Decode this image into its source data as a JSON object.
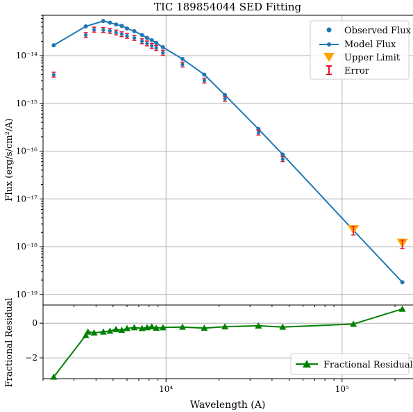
{
  "chart_data": [
    {
      "panel": "top",
      "type": "scatter",
      "title": "TIC 189854044 SED Fitting",
      "xlabel": "",
      "ylabel": "Flux (erg/s/cm²/A)",
      "xscale": "log",
      "yscale": "log",
      "xlim": [
        2000,
        260000
      ],
      "ylim": [
        6e-20,
        7e-14
      ],
      "grid": true,
      "y_ticks": [
        "10⁻¹⁴",
        "10⁻¹⁵",
        "10⁻¹⁶",
        "10⁻¹⁷",
        "10⁻¹⁸",
        "10⁻¹⁹"
      ],
      "legend_position": "top-right",
      "legend": [
        "Observed Flux",
        "Model Flux",
        "Upper Limit",
        "Error"
      ],
      "series": [
        {
          "name": "Observed Flux",
          "x": [
            2300,
            3500,
            3900,
            4400,
            4800,
            5200,
            5600,
            6000,
            6600,
            7300,
            7800,
            8300,
            8800,
            9600,
            12400,
            16500,
            21600,
            33500,
            46000
          ],
          "y": [
            4e-15,
            2.7e-14,
            3.5e-14,
            3.45e-14,
            3.3e-14,
            3.05e-14,
            2.8e-14,
            2.6e-14,
            2.35e-14,
            2e-14,
            1.8e-14,
            1.6e-14,
            1.45e-14,
            1.15e-14,
            6.5e-15,
            3e-15,
            1.25e-15,
            2.45e-16,
            6.8e-17
          ]
        },
        {
          "name": "Model Flux",
          "x": [
            2300,
            3500,
            4400,
            4800,
            5200,
            5600,
            6000,
            6600,
            7300,
            7800,
            8300,
            8800,
            9600,
            12400,
            16500,
            21600,
            33500,
            46000,
            116000,
            220000
          ],
          "y": [
            1.65e-14,
            4.1e-14,
            5.3e-14,
            4.9e-14,
            4.5e-14,
            4.2e-14,
            3.7e-14,
            3.25e-14,
            2.7e-14,
            2.35e-14,
            2.1e-14,
            1.85e-14,
            1.5e-14,
            8.5e-15,
            4e-15,
            1.5e-15,
            2.9e-16,
            8.5e-17,
            2.2e-18,
            1.8e-19
          ]
        },
        {
          "name": "Upper Limit",
          "x": [
            116000,
            220000
          ],
          "y": [
            2.3e-18,
            1.2e-18
          ]
        }
      ]
    },
    {
      "panel": "bottom",
      "type": "line",
      "xlabel": "Wavelength (A)",
      "ylabel": "Fractional Residual",
      "xscale": "log",
      "xlim": [
        2000,
        260000
      ],
      "ylim": [
        -3.2,
        1.05
      ],
      "grid": true,
      "x_ticks": [
        "10⁴",
        "10⁵"
      ],
      "y_ticks": [
        "0",
        "−2"
      ],
      "legend_position": "bottom-right",
      "legend": [
        "Fractional Residual"
      ],
      "series": [
        {
          "name": "Fractional Residual",
          "x": [
            2300,
            3500,
            3600,
            3900,
            4400,
            4800,
            5200,
            5600,
            6000,
            6600,
            7300,
            7800,
            8300,
            8800,
            9600,
            12400,
            16500,
            21600,
            33500,
            46000,
            116000,
            220000
          ],
          "y": [
            -3.1,
            -0.7,
            -0.5,
            -0.55,
            -0.5,
            -0.45,
            -0.35,
            -0.4,
            -0.3,
            -0.25,
            -0.3,
            -0.25,
            -0.2,
            -0.28,
            -0.25,
            -0.22,
            -0.28,
            -0.2,
            -0.15,
            -0.22,
            -0.05,
            0.82
          ]
        }
      ]
    }
  ],
  "colors": {
    "observed": "#1f77b4",
    "model": "#1f77b4",
    "upper_limit": "#ffa500",
    "error": "#e8112d",
    "residual": "#008000",
    "grid": "#b0b0b0"
  }
}
